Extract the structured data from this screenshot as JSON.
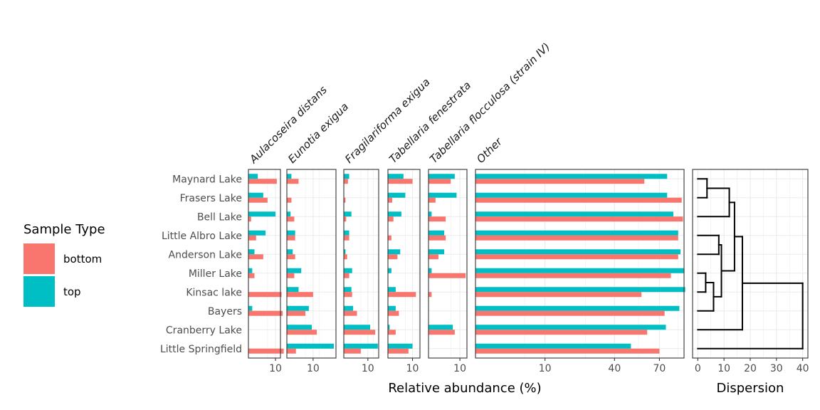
{
  "chart_data": {
    "type": "bar",
    "orientation": "horizontal",
    "xlabel": "Relative abundance (%)",
    "x_scale": "sqrt",
    "grid": true,
    "legend": {
      "title": "Sample Type",
      "position": "left",
      "entries": [
        {
          "name": "bottom",
          "color": "#F8766D"
        },
        {
          "name": "top",
          "color": "#00BFC4"
        }
      ]
    },
    "lakes": [
      "Maynard Lake",
      "Frasers Lake",
      "Bell Lake",
      "Little Albro Lake",
      "Anderson Lake",
      "Miller Lake",
      "Kinsac lake",
      "Bayers",
      "Cranberry Lake",
      "Little Springfield"
    ],
    "panels": [
      {
        "taxon": "Aulacoseira distans",
        "xlim": [
          0,
          14
        ],
        "ticks": [
          10
        ],
        "tick_labels": [
          "10"
        ],
        "top": [
          1.2,
          3,
          10,
          4,
          0.5,
          0.2,
          0,
          0.2,
          0,
          0
        ],
        "bottom": [
          11,
          5,
          0.1,
          0.8,
          3,
          0.5,
          15,
          16,
          0,
          17
        ]
      },
      {
        "taxon": "Eunotia exigua",
        "xlim": [
          0,
          35
        ],
        "ticks": [
          10
        ],
        "tick_labels": [
          "10"
        ],
        "top": [
          0.3,
          0,
          0.2,
          1,
          0.5,
          3,
          2,
          7,
          9,
          32
        ],
        "bottom": [
          2,
          0.3,
          0.8,
          1,
          1,
          0.8,
          10,
          5,
          13,
          1.2
        ]
      },
      {
        "taxon": "Fragilariforma exigua",
        "xlim": [
          0,
          21
        ],
        "ticks": [
          10
        ],
        "tick_labels": [
          "10"
        ],
        "top": [
          0.5,
          0,
          1,
          0.5,
          0.05,
          1.2,
          1,
          1.5,
          12,
          20
        ],
        "bottom": [
          0.3,
          0.05,
          0.1,
          0.5,
          0.2,
          0.5,
          1.2,
          3,
          17,
          5
        ]
      },
      {
        "taxon": "Tabellaria fenestrata",
        "xlim": [
          0,
          17
        ],
        "ticks": [
          10
        ],
        "tick_labels": [
          "10"
        ],
        "top": [
          4,
          5,
          3,
          0,
          2.5,
          0.2,
          1,
          1,
          0.05,
          10
        ],
        "bottom": [
          10,
          0.3,
          0.5,
          0.2,
          1.5,
          0,
          13,
          2,
          1,
          7
        ]
      },
      {
        "taxon": "Tabellaria flocculosa (strain IV)",
        "xlim": [
          0,
          15
        ],
        "ticks": [
          10
        ],
        "tick_labels": [
          "10"
        ],
        "top": [
          7,
          8,
          0.1,
          2.5,
          2.5,
          0.1,
          0,
          0,
          6,
          0
        ],
        "bottom": [
          5,
          0.5,
          3,
          3,
          1,
          14,
          0.1,
          0,
          7,
          0
        ]
      },
      {
        "taxon": "Other",
        "xlim": [
          0,
          90
        ],
        "ticks": [
          10,
          40,
          70
        ],
        "tick_labels": [
          "10",
          "40",
          "70"
        ],
        "top": [
          76,
          76,
          81,
          85,
          87,
          90,
          91,
          86,
          75,
          50
        ],
        "bottom": [
          59,
          88,
          89,
          85,
          85,
          79,
          57,
          74,
          61,
          70
        ]
      }
    ],
    "dendrogram": {
      "xlabel": "Dispersion",
      "xlim": [
        -2,
        42
      ],
      "ticks": [
        0,
        10,
        20,
        30,
        40
      ],
      "tick_labels": [
        "0",
        "10",
        "20",
        "30",
        "40"
      ],
      "merges": [
        {
          "a": 0,
          "b": 1,
          "height": 3.5
        },
        {
          "a": 10,
          "b": 2,
          "height": 12
        },
        {
          "a": 11,
          "b": 3,
          "height": 14
        },
        {
          "a": 6,
          "b": 5,
          "height": 3
        },
        {
          "a": 13,
          "b": 7,
          "height": 6
        },
        {
          "a": 4,
          "b": 3.5,
          "height": 0
        },
        {
          "a": 4,
          "b": 5,
          "height": 8
        }
      ],
      "tree": {
        "h": 40,
        "children": [
          {
            "h": 17,
            "children": [
              {
                "h": 14.5,
                "children": [
                  {
                    "h": 12,
                    "children": [
                      {
                        "h": 3.5,
                        "children": [
                          {
                            "leaf": 0
                          },
                          {
                            "leaf": 1
                          }
                        ]
                      },
                      {
                        "leaf": 2
                      }
                    ]
                  },
                  {
                    "leaf": 3
                  }
                ]
              },
              {
                "h": 9,
                "children": [
                  {
                    "h": 8.5,
                    "children": [
                      {
                        "leaf": 3
                      },
                      {
                        "leaf": 4
                      }
                    ]
                  },
                  {
                    "h": 6,
                    "children": [
                      {
                        "h": 3,
                        "children": [
                          {
                            "leaf": 5
                          },
                          {
                            "leaf": 6
                          }
                        ]
                      },
                      {
                        "leaf": 7
                      }
                    ]
                  }
                ]
              },
              {
                "leaf": 8
              }
            ]
          },
          {
            "leaf": 9
          }
        ]
      }
    }
  }
}
